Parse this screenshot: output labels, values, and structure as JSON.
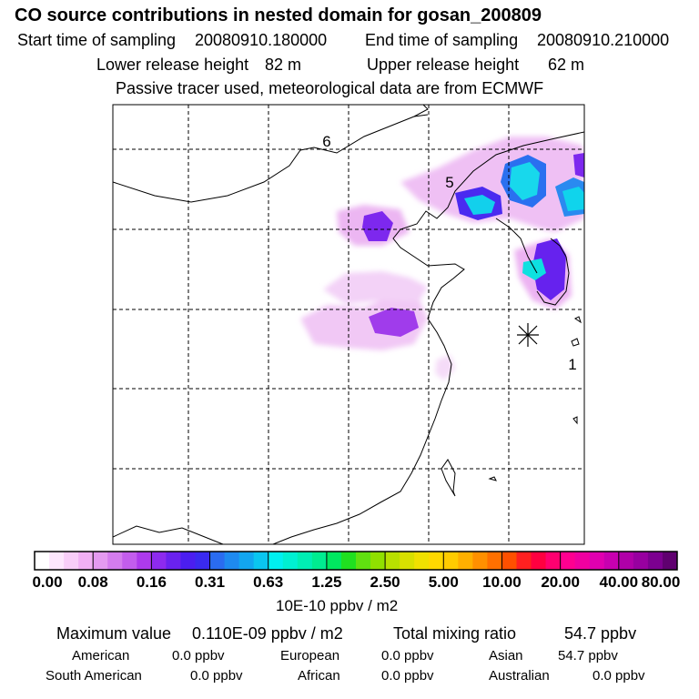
{
  "title": "CO  source contributions in nested domain for gosan_200809",
  "sampling": {
    "start_label": "Start time of sampling",
    "start_value": "20080910.180000",
    "end_label": "End time of sampling",
    "end_value": "20080910.210000"
  },
  "release": {
    "lower_label": "Lower release height",
    "lower_value": "82 m",
    "upper_label": "Upper release height",
    "upper_value": "62 m"
  },
  "note": "Passive tracer used, meteorological data are from ECMWF",
  "map": {
    "labels": [
      "6",
      "5",
      "1"
    ],
    "receptor_marker": "star-icon",
    "grid": "dashed"
  },
  "colorbar": {
    "ticks": [
      "0.00",
      "0.08",
      "0.16",
      "0.31",
      "0.63",
      "1.25",
      "2.50",
      "5.00",
      "10.00",
      "20.00",
      "40.00",
      "80.00"
    ],
    "colors": [
      "#ffffff",
      "#fde6fd",
      "#f8cdf8",
      "#f1b0f4",
      "#e49af0",
      "#d47cee",
      "#c35ded",
      "#ad3aec",
      "#8d2aee",
      "#6a22ef",
      "#4b1ef0",
      "#3a2af0",
      "#2a6cf0",
      "#1e8af0",
      "#12a6f0",
      "#0ac6f0",
      "#00f0f0",
      "#00f0d2",
      "#00eeb4",
      "#00ec90",
      "#00e860",
      "#20e020",
      "#60e010",
      "#90e000",
      "#b8e000",
      "#d8e000",
      "#f0e000",
      "#ffd800",
      "#ffcc00",
      "#ffb000",
      "#ff9000",
      "#ff7000",
      "#ff5000",
      "#ff2020",
      "#ff0040",
      "#ff0070",
      "#ff0090",
      "#f000a0",
      "#e000b0",
      "#c800b0",
      "#b000a8",
      "#9800a0",
      "#7c0090",
      "#600070"
    ],
    "units": "10E-10 ppbv / m2"
  },
  "stats": {
    "max_label": "Maximum value",
    "max_value": "0.110E-09 ppbv / m2",
    "total_label": "Total mixing ratio",
    "total_value": "54.7 ppbv"
  },
  "regions": [
    {
      "name": "American",
      "value": "0.0 ppbv"
    },
    {
      "name": "European",
      "value": "0.0 ppbv"
    },
    {
      "name": "Asian",
      "value": "54.7 ppbv"
    },
    {
      "name": "South American",
      "value": "0.0 ppbv"
    },
    {
      "name": "African",
      "value": "0.0 ppbv"
    },
    {
      "name": "Australian",
      "value": "0.0 ppbv"
    }
  ]
}
